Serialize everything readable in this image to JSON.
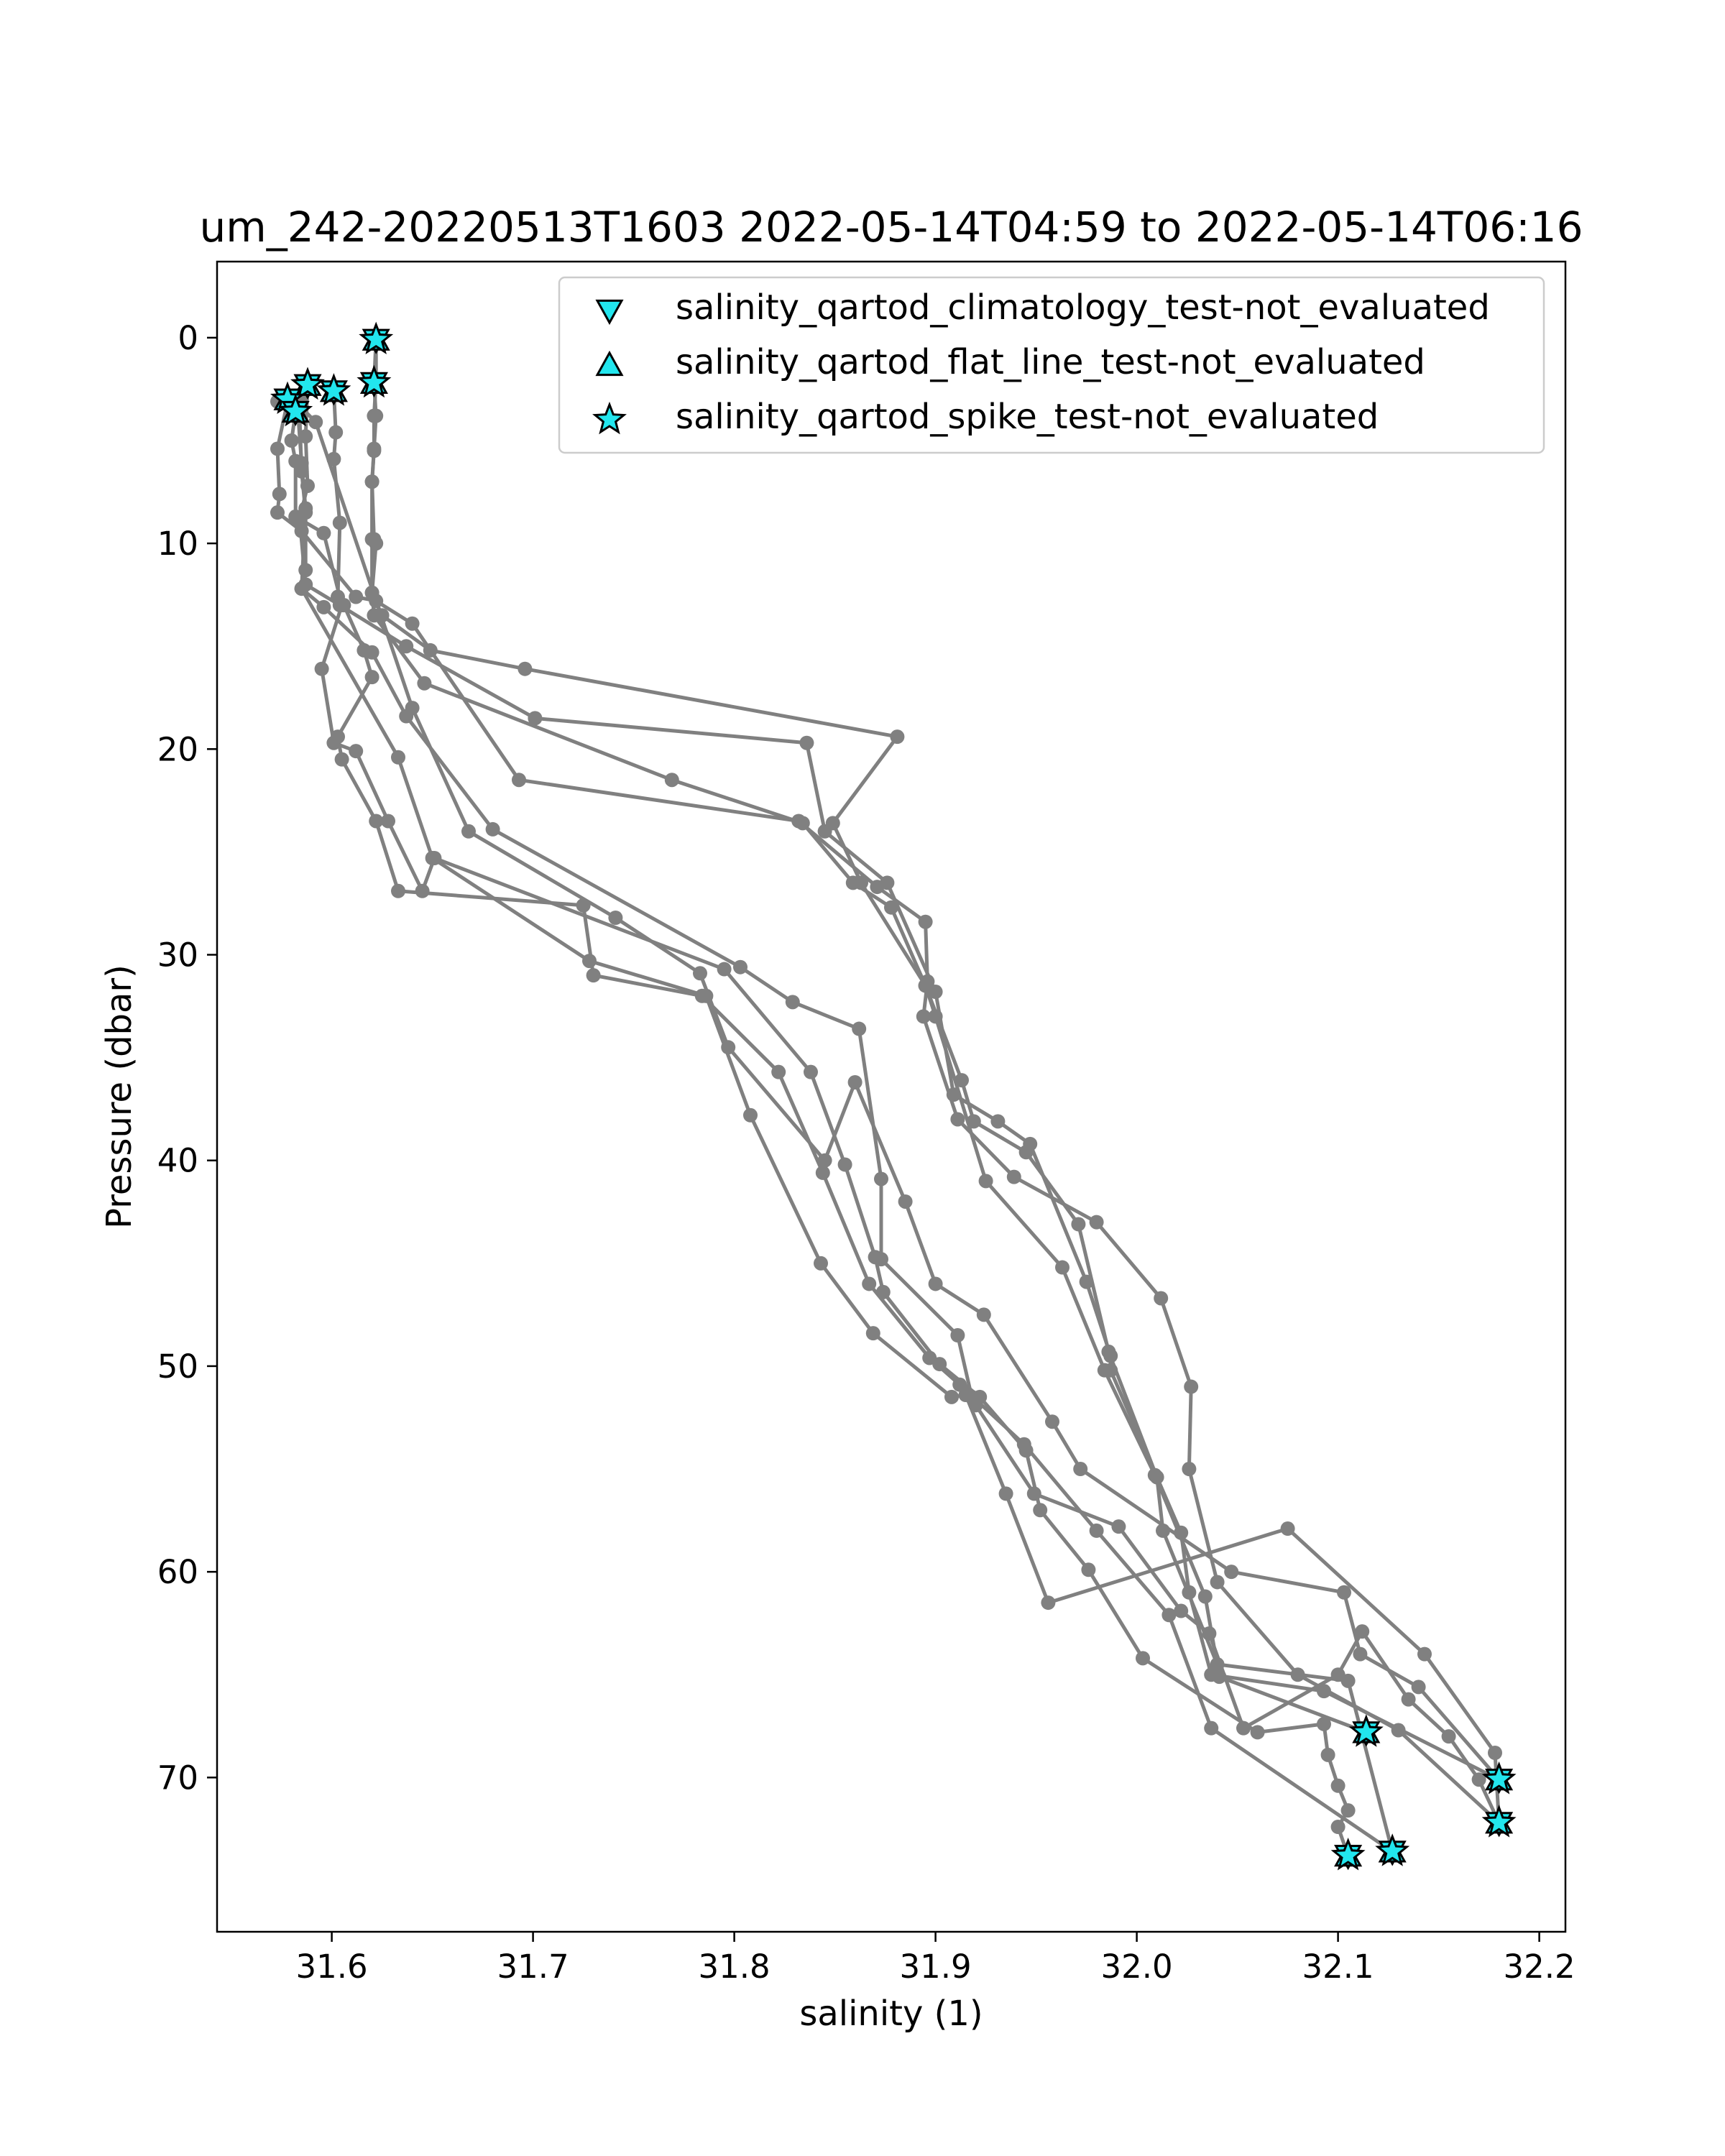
{
  "chart_data": {
    "type": "line",
    "title": "um_242-20220513T1603 2022-05-14T04:59 to 2022-05-14T06:16",
    "xlabel": "salinity (1)",
    "ylabel": "Pressure (dbar)",
    "xlim": [
      31.543,
      32.213
    ],
    "ylim": [
      77.5,
      -3.7
    ],
    "y_inverted": true,
    "xticks": [
      "31.6",
      "31.7",
      "31.8",
      "31.9",
      "32.0",
      "32.1",
      "32.2"
    ],
    "yticks": [
      "0",
      "10",
      "20",
      "30",
      "40",
      "50",
      "60",
      "70"
    ],
    "grid": false,
    "legend_position": "top-right",
    "colors": {
      "line": "#808080",
      "flag_fill": "#22e6ee",
      "flag_edge": "#000000"
    },
    "profile_color": "#808080",
    "legend": [
      {
        "label": "salinity_qartod_climatology_test-not_evaluated",
        "marker": "triangle-down"
      },
      {
        "label": "salinity_qartod_flat_line_test-not_evaluated",
        "marker": "triangle-up"
      },
      {
        "label": "salinity_qartod_spike_test-not_evaluated",
        "marker": "star"
      }
    ],
    "series": [
      {
        "points": [
          [
            31.622,
            0.1
          ],
          [
            31.621,
            2.2
          ],
          [
            31.622,
            3.8
          ],
          [
            31.621,
            5.4
          ],
          [
            31.62,
            7.0
          ],
          [
            31.621,
            9.8
          ],
          [
            31.622,
            10.0
          ],
          [
            31.62,
            12.4
          ],
          [
            31.625,
            13.5
          ],
          [
            31.649,
            15.2
          ],
          [
            31.696,
            16.1
          ],
          [
            31.881,
            19.4
          ],
          [
            31.849,
            23.6
          ],
          [
            31.863,
            26.5
          ],
          [
            31.895,
            31.5
          ],
          [
            31.9,
            33.0
          ],
          [
            31.925,
            41.0
          ],
          [
            31.963,
            45.2
          ],
          [
            31.984,
            50.2
          ],
          [
            32.009,
            55.3
          ],
          [
            32.034,
            61.2
          ],
          [
            32.041,
            65.1
          ],
          [
            32.114,
            67.8
          ]
        ]
      },
      {
        "points": [
          [
            31.622,
            0.0
          ],
          [
            31.622,
            2.1
          ],
          [
            31.621,
            3.8
          ],
          [
            31.621,
            5.5
          ],
          [
            31.62,
            7.0
          ],
          [
            31.62,
            9.8
          ],
          [
            31.62,
            12.4
          ],
          [
            31.621,
            13.5
          ],
          [
            31.646,
            16.8
          ],
          [
            31.769,
            21.5
          ],
          [
            31.834,
            23.6
          ],
          [
            31.859,
            26.5
          ],
          [
            31.878,
            27.7
          ],
          [
            31.895,
            31.5
          ],
          [
            31.913,
            36.1
          ],
          [
            31.919,
            38.1
          ],
          [
            31.945,
            39.6
          ],
          [
            31.971,
            43.1
          ],
          [
            31.986,
            49.3
          ],
          [
            32.01,
            55.4
          ],
          [
            32.013,
            58.0
          ],
          [
            32.04,
            64.5
          ],
          [
            32.105,
            65.3
          ],
          [
            32.127,
            73.6
          ]
        ]
      },
      {
        "points": [
          [
            31.588,
            2.3
          ],
          [
            31.587,
            4.8
          ],
          [
            31.588,
            7.2
          ],
          [
            31.584,
            8.8
          ],
          [
            31.587,
            12.0
          ],
          [
            31.604,
            13.0
          ],
          [
            31.637,
            15.0
          ],
          [
            31.701,
            18.5
          ],
          [
            31.836,
            19.7
          ],
          [
            31.845,
            24.0
          ],
          [
            31.876,
            26.5
          ],
          [
            31.9,
            31.8
          ],
          [
            31.909,
            36.8
          ],
          [
            31.931,
            38.1
          ],
          [
            31.947,
            39.2
          ],
          [
            31.975,
            45.9
          ],
          [
            31.987,
            49.5
          ],
          [
            31.987,
            50.2
          ],
          [
            32.022,
            58.1
          ],
          [
            32.026,
            61.0
          ],
          [
            32.037,
            65.0
          ],
          [
            32.093,
            65.8
          ],
          [
            32.18,
            70.1
          ]
        ]
      },
      {
        "points": [
          [
            31.601,
            2.6
          ],
          [
            31.602,
            4.6
          ],
          [
            31.601,
            5.9
          ],
          [
            31.604,
            9.0
          ],
          [
            31.603,
            12.6
          ],
          [
            31.606,
            13.0
          ],
          [
            31.616,
            15.2
          ],
          [
            31.62,
            16.5
          ],
          [
            31.603,
            19.4
          ],
          [
            31.605,
            20.5
          ],
          [
            31.622,
            23.5
          ],
          [
            31.633,
            26.9
          ],
          [
            31.725,
            27.6
          ],
          [
            31.73,
            31.0
          ],
          [
            31.784,
            32.0
          ],
          [
            31.822,
            35.7
          ],
          [
            31.844,
            40.6
          ],
          [
            31.867,
            46.0
          ],
          [
            31.897,
            49.6
          ],
          [
            31.912,
            50.9
          ],
          [
            31.944,
            53.8
          ],
          [
            31.98,
            58.0
          ],
          [
            32.016,
            62.1
          ],
          [
            32.037,
            67.6
          ],
          [
            32.127,
            73.6
          ]
        ]
      },
      {
        "points": [
          [
            31.578,
            3.1
          ],
          [
            31.573,
            5.4
          ],
          [
            31.574,
            7.6
          ],
          [
            31.573,
            8.5
          ],
          [
            31.585,
            9.4
          ],
          [
            31.612,
            12.6
          ],
          [
            31.622,
            12.8
          ],
          [
            31.64,
            13.9
          ],
          [
            31.693,
            21.5
          ],
          [
            31.832,
            23.5
          ],
          [
            31.871,
            26.7
          ],
          [
            31.895,
            28.4
          ],
          [
            31.896,
            31.3
          ],
          [
            31.894,
            33.0
          ],
          [
            31.911,
            38.0
          ],
          [
            31.939,
            40.8
          ],
          [
            31.98,
            43.0
          ],
          [
            32.012,
            46.7
          ],
          [
            32.027,
            51.0
          ],
          [
            32.026,
            55.0
          ],
          [
            32.04,
            60.5
          ],
          [
            32.08,
            65.0
          ],
          [
            32.13,
            67.7
          ],
          [
            32.18,
            72.2
          ]
        ]
      },
      {
        "points": [
          [
            31.582,
            3.6
          ],
          [
            31.58,
            5.0
          ],
          [
            31.582,
            6.0
          ],
          [
            31.582,
            8.7
          ],
          [
            31.596,
            9.5
          ],
          [
            31.605,
            13.0
          ],
          [
            31.595,
            16.1
          ],
          [
            31.601,
            19.7
          ],
          [
            31.612,
            20.1
          ],
          [
            31.628,
            23.5
          ],
          [
            31.645,
            26.9
          ],
          [
            31.651,
            25.3
          ],
          [
            31.795,
            30.7
          ],
          [
            31.838,
            35.7
          ],
          [
            31.855,
            40.2
          ],
          [
            31.87,
            44.7
          ],
          [
            31.874,
            46.4
          ],
          [
            31.902,
            49.9
          ],
          [
            31.922,
            51.5
          ],
          [
            31.945,
            54.1
          ],
          [
            31.952,
            57.0
          ],
          [
            31.976,
            59.9
          ],
          [
            32.003,
            64.2
          ],
          [
            32.06,
            67.8
          ],
          [
            32.093,
            67.4
          ],
          [
            32.095,
            68.9
          ],
          [
            32.1,
            70.4
          ],
          [
            32.105,
            71.6
          ],
          [
            32.1,
            72.4
          ],
          [
            32.105,
            73.8
          ]
        ]
      },
      {
        "points": [
          [
            31.583,
            3.4
          ],
          [
            31.585,
            6.1
          ],
          [
            31.587,
            8.3
          ],
          [
            31.585,
            12.2
          ],
          [
            31.596,
            13.1
          ],
          [
            31.62,
            15.3
          ],
          [
            31.637,
            18.4
          ],
          [
            31.68,
            23.9
          ],
          [
            31.803,
            30.6
          ],
          [
            31.829,
            32.3
          ],
          [
            31.862,
            33.6
          ],
          [
            31.873,
            40.9
          ],
          [
            31.873,
            44.8
          ],
          [
            31.911,
            48.5
          ],
          [
            31.918,
            51.5
          ],
          [
            31.92,
            51.9
          ],
          [
            31.949,
            56.2
          ],
          [
            31.991,
            57.8
          ],
          [
            32.022,
            61.9
          ],
          [
            32.036,
            63.0
          ],
          [
            32.053,
            67.6
          ],
          [
            32.1,
            65.0
          ],
          [
            32.112,
            62.9
          ],
          [
            32.135,
            66.2
          ],
          [
            32.155,
            68.0
          ],
          [
            32.17,
            70.1
          ],
          [
            32.18,
            72.2
          ]
        ]
      },
      {
        "points": [
          [
            31.588,
            2.3
          ],
          [
            31.585,
            3.0
          ],
          [
            31.584,
            3.7
          ],
          [
            31.585,
            6.5
          ],
          [
            31.587,
            8.5
          ],
          [
            31.587,
            11.3
          ],
          [
            31.585,
            12.2
          ],
          [
            31.633,
            20.4
          ],
          [
            31.65,
            25.3
          ],
          [
            31.728,
            30.3
          ],
          [
            31.786,
            32.0
          ],
          [
            31.808,
            37.8
          ],
          [
            31.843,
            45.0
          ],
          [
            31.869,
            48.4
          ],
          [
            31.908,
            51.5
          ],
          [
            31.915,
            51.4
          ],
          [
            31.935,
            56.2
          ],
          [
            31.956,
            61.5
          ],
          [
            32.075,
            57.9
          ],
          [
            32.143,
            64.0
          ],
          [
            32.178,
            68.8
          ],
          [
            32.18,
            72.2
          ]
        ]
      },
      {
        "points": [
          [
            31.578,
            3.0
          ],
          [
            31.573,
            3.1
          ],
          [
            31.588,
            2.3
          ],
          [
            31.585,
            3.4
          ],
          [
            31.592,
            4.1
          ],
          [
            31.64,
            18.0
          ],
          [
            31.668,
            24.0
          ],
          [
            31.741,
            28.2
          ],
          [
            31.783,
            30.9
          ],
          [
            31.797,
            34.5
          ],
          [
            31.845,
            40.0
          ],
          [
            31.86,
            36.2
          ],
          [
            31.885,
            42.0
          ],
          [
            31.9,
            46.0
          ],
          [
            31.924,
            47.5
          ],
          [
            31.958,
            52.7
          ],
          [
            31.972,
            55.0
          ],
          [
            32.047,
            60.0
          ],
          [
            32.103,
            61.0
          ],
          [
            32.111,
            64.0
          ],
          [
            32.14,
            65.6
          ],
          [
            32.18,
            70.1
          ]
        ]
      }
    ],
    "flagged_points": [
      [
        31.622,
        0.1
      ],
      [
        31.621,
        2.2
      ],
      [
        31.588,
        2.3
      ],
      [
        31.601,
        2.6
      ],
      [
        31.578,
        3.0
      ],
      [
        31.582,
        3.6
      ],
      [
        32.114,
        67.8
      ],
      [
        32.18,
        70.1
      ],
      [
        32.18,
        72.2
      ],
      [
        32.127,
        73.6
      ],
      [
        32.105,
        73.8
      ]
    ]
  }
}
